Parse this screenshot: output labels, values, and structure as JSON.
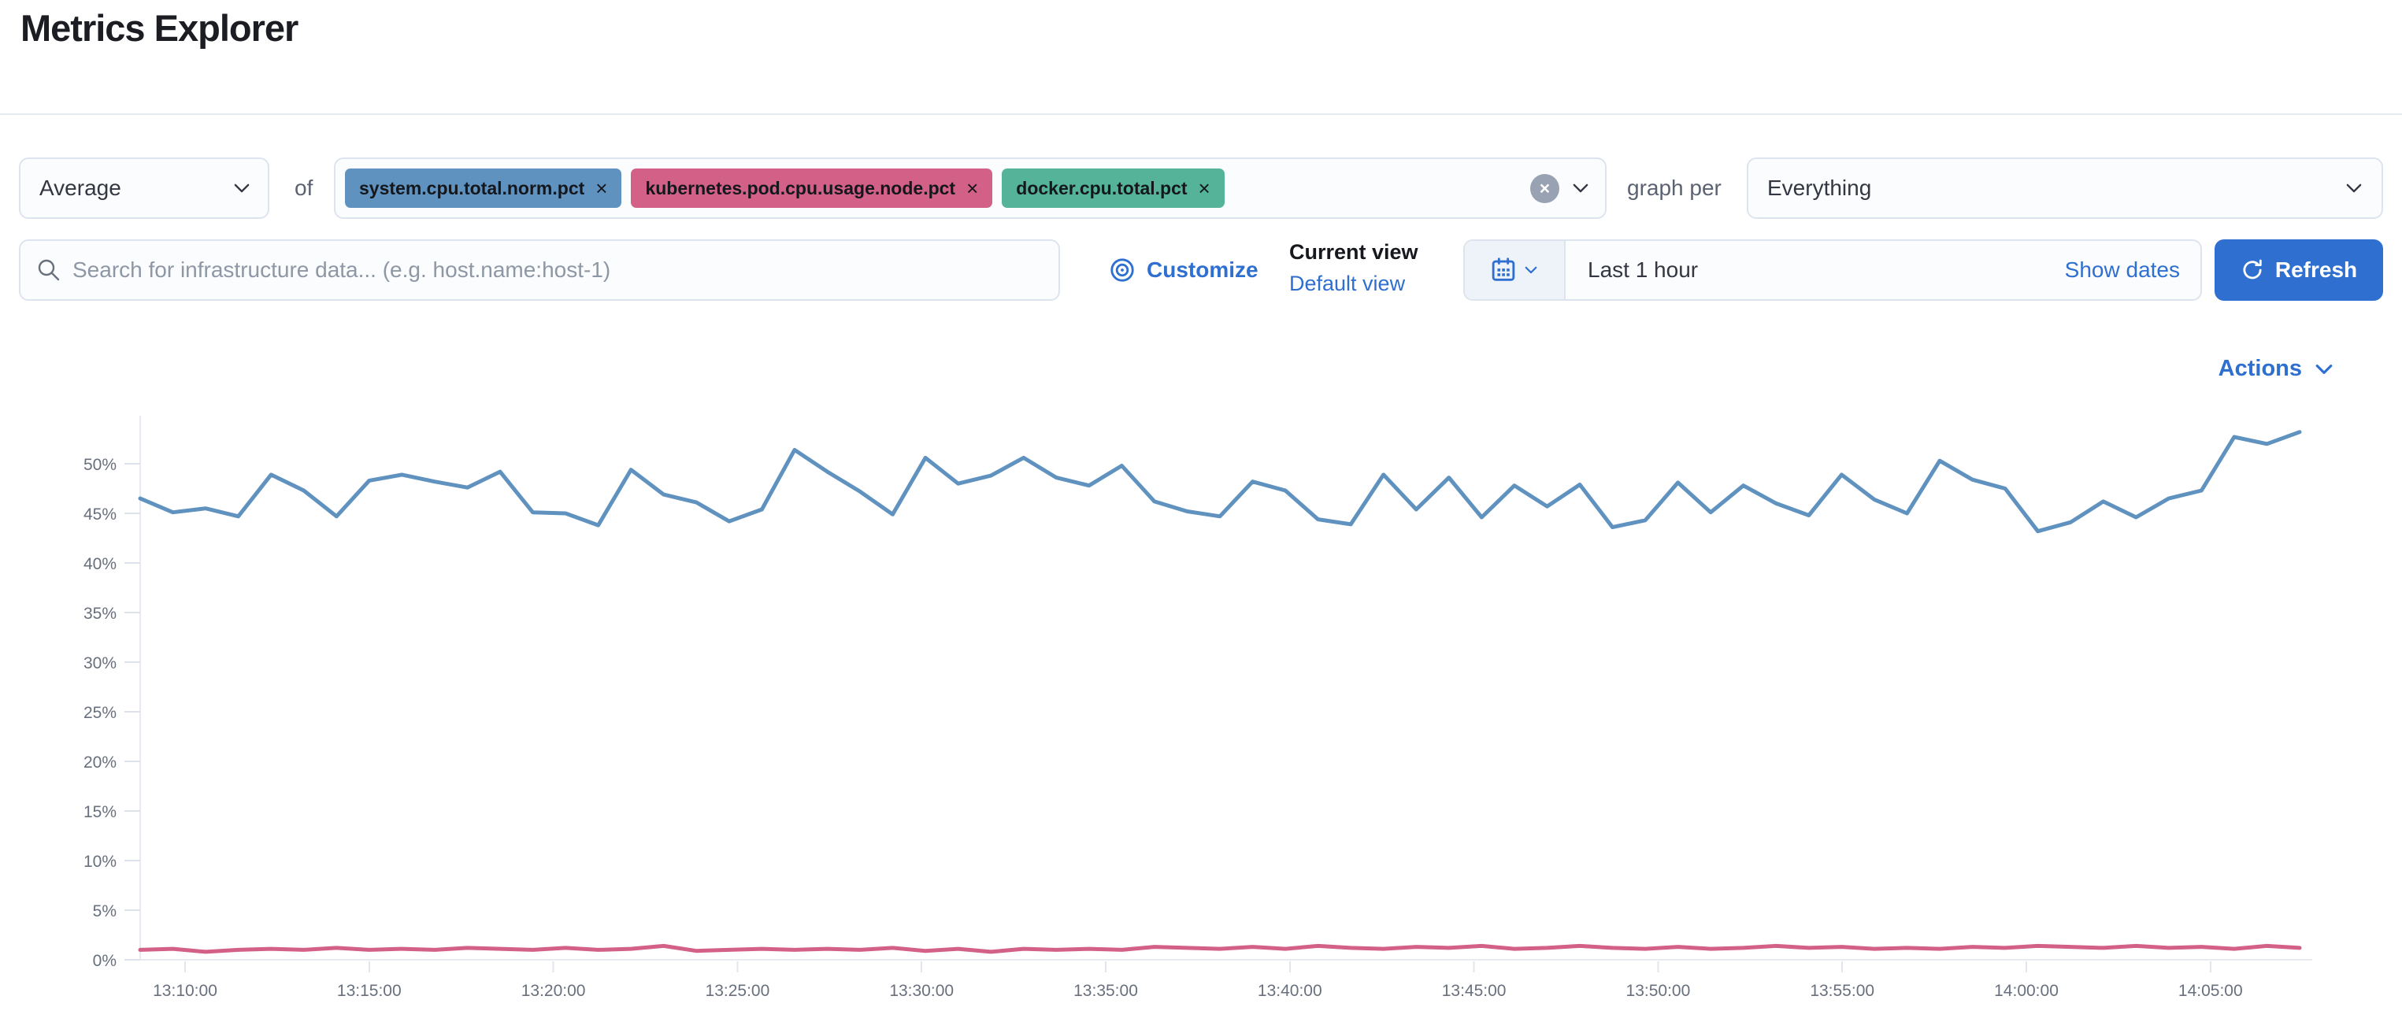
{
  "header": {
    "title": "Metrics Explorer"
  },
  "toolbar": {
    "aggregation_value": "Average",
    "of_label": "of",
    "metrics": [
      {
        "label": "system.cpu.total.norm.pct",
        "color": "#6092C0"
      },
      {
        "label": "kubernetes.pod.cpu.usage.node.pct",
        "color": "#D36086"
      },
      {
        "label": "docker.cpu.total.pct",
        "color": "#54B399"
      }
    ],
    "remove_icon": "×",
    "clear_icon": "×",
    "graph_per_label": "graph per",
    "graph_per_value": "Everything"
  },
  "search": {
    "placeholder": "Search for infrastructure data... (e.g. host.name:host-1)"
  },
  "view_controls": {
    "customize_label": "Customize",
    "current_view_label": "Current view",
    "current_view_value": "Default view"
  },
  "time_picker": {
    "range_label": "Last 1 hour",
    "show_dates_label": "Show dates",
    "refresh_label": "Refresh"
  },
  "actions_label": "Actions",
  "icons": [
    "chevron-down-icon",
    "search-icon",
    "customize-bullseye-icon",
    "calendar-icon",
    "refresh-icon",
    "clear-circle-icon"
  ],
  "colors": {
    "accent": "#2e6fd0",
    "border": "#dee4ee",
    "axis_text": "#69707d",
    "grid": "#e7eaf0"
  },
  "chart_data": {
    "type": "line",
    "title": "",
    "xlabel": "",
    "ylabel": "",
    "y_unit": "%",
    "ylim": [
      0,
      55
    ],
    "y_ticks": [
      "50%",
      "45%",
      "40%",
      "35%",
      "30%",
      "25%",
      "20%",
      "15%",
      "10%",
      "5%",
      "0%"
    ],
    "y_tick_values": [
      50,
      45,
      40,
      35,
      30,
      25,
      20,
      15,
      10,
      5,
      0
    ],
    "x_ticks": [
      "13:10:00",
      "13:15:00",
      "13:20:00",
      "13:25:00",
      "13:30:00",
      "13:35:00",
      "13:40:00",
      "13:45:00",
      "13:50:00",
      "13:55:00",
      "14:00:00",
      "14:05:00"
    ],
    "x_range": [
      "13:08:47",
      "14:07:30"
    ],
    "grid": false,
    "legend": "none",
    "series": [
      {
        "name": "system.cpu.total.norm.pct",
        "color": "#6092C0",
        "values": [
          46.5,
          45.1,
          45.5,
          44.7,
          48.9,
          47.3,
          44.7,
          48.3,
          48.9,
          48.2,
          47.6,
          49.2,
          45.1,
          45.0,
          43.8,
          49.4,
          46.9,
          46.1,
          44.2,
          45.4,
          51.4,
          49.2,
          47.2,
          44.9,
          50.6,
          48.0,
          48.8,
          50.6,
          48.6,
          47.8,
          49.8,
          46.2,
          45.2,
          44.7,
          48.2,
          47.3,
          44.4,
          43.9,
          48.9,
          45.4,
          48.6,
          44.6,
          47.8,
          45.7,
          47.9,
          43.6,
          44.3,
          48.1,
          45.1,
          47.8,
          46.0,
          44.8,
          48.9,
          46.4,
          45.0,
          50.3,
          48.4,
          47.5,
          43.2,
          44.1,
          46.2,
          44.6,
          46.5,
          47.3,
          52.7,
          52.0,
          53.2
        ]
      },
      {
        "name": "kubernetes.pod.cpu.usage.node.pct",
        "color": "#D36086",
        "values": [
          1.0,
          1.1,
          0.8,
          1.0,
          1.1,
          1.0,
          1.2,
          1.0,
          1.1,
          1.0,
          1.2,
          1.1,
          1.0,
          1.2,
          1.0,
          1.1,
          1.4,
          0.9,
          1.0,
          1.1,
          1.0,
          1.1,
          1.0,
          1.2,
          0.9,
          1.1,
          0.8,
          1.1,
          1.0,
          1.1,
          1.0,
          1.3,
          1.2,
          1.1,
          1.3,
          1.1,
          1.4,
          1.2,
          1.1,
          1.3,
          1.2,
          1.4,
          1.1,
          1.2,
          1.4,
          1.2,
          1.1,
          1.3,
          1.1,
          1.2,
          1.4,
          1.2,
          1.3,
          1.1,
          1.2,
          1.1,
          1.3,
          1.2,
          1.4,
          1.3,
          1.2,
          1.4,
          1.2,
          1.3,
          1.1,
          1.4,
          1.2
        ]
      }
    ]
  }
}
